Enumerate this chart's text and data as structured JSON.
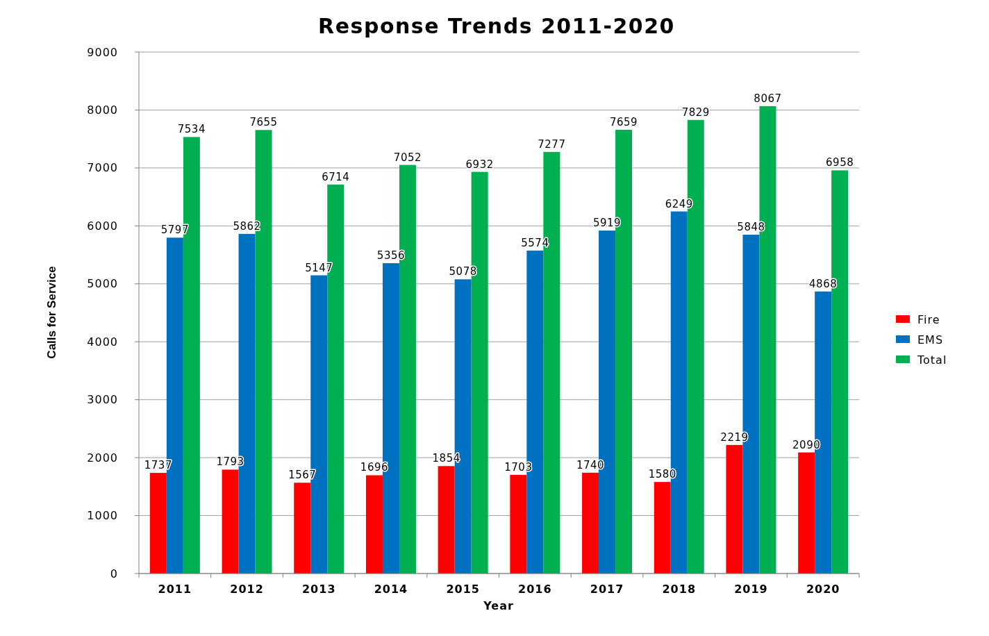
{
  "chart_data": {
    "type": "bar",
    "title": "Response Trends 2011-2020",
    "xlabel": "Year",
    "ylabel": "Calls for Service",
    "categories": [
      "2011",
      "2012",
      "2013",
      "2014",
      "2015",
      "2016",
      "2017",
      "2018",
      "2019",
      "2020"
    ],
    "series": [
      {
        "name": "Fire",
        "color": "#ff0000",
        "values": [
          1737,
          1793,
          1567,
          1696,
          1854,
          1703,
          1740,
          1580,
          2219,
          2090
        ]
      },
      {
        "name": "EMS",
        "color": "#0070c0",
        "values": [
          5797,
          5862,
          5147,
          5356,
          5078,
          5574,
          5919,
          6249,
          5848,
          4868
        ]
      },
      {
        "name": "Total",
        "color": "#00b050",
        "values": [
          7534,
          7655,
          6714,
          7052,
          6932,
          7277,
          7659,
          7829,
          8067,
          6958
        ]
      }
    ],
    "ylim": [
      0,
      9000
    ],
    "yticks": [
      0,
      1000,
      2000,
      3000,
      4000,
      5000,
      6000,
      7000,
      8000,
      9000
    ],
    "grid": "y",
    "legend": "right",
    "data_labels": true
  }
}
